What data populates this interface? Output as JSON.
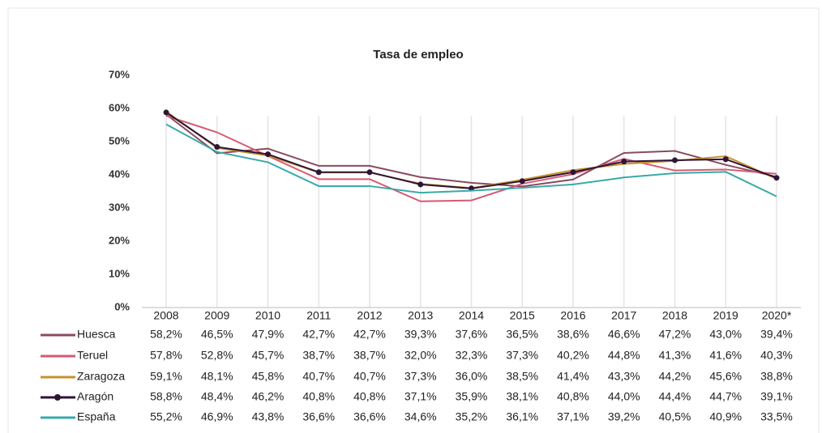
{
  "chart_data": {
    "type": "line",
    "title": "Tasa de empleo",
    "categories": [
      "2008",
      "2009",
      "2010",
      "2011",
      "2012",
      "2013",
      "2014",
      "2015",
      "2016",
      "2017",
      "2018",
      "2019",
      "2020*"
    ],
    "ylim": [
      0,
      70
    ],
    "yticks": [
      {
        "value": 0,
        "label": "0%"
      },
      {
        "value": 10,
        "label": "10%"
      },
      {
        "value": 20,
        "label": "20%"
      },
      {
        "value": 30,
        "label": "30%"
      },
      {
        "value": 40,
        "label": "40%"
      },
      {
        "value": 50,
        "label": "50%"
      },
      {
        "value": 60,
        "label": "60%"
      },
      {
        "value": 70,
        "label": "70%"
      }
    ],
    "grid": true,
    "series": [
      {
        "name": "Huesca",
        "color": "#8b4a5e",
        "values": [
          58.2,
          46.5,
          47.9,
          42.7,
          42.7,
          39.3,
          37.6,
          36.5,
          38.6,
          46.6,
          47.2,
          43.0,
          39.4
        ],
        "value_labels": [
          "58,2%",
          "46,5%",
          "47,9%",
          "42,7%",
          "42,7%",
          "39,3%",
          "37,6%",
          "36,5%",
          "38,6%",
          "46,6%",
          "47,2%",
          "43,0%",
          "39,4%"
        ]
      },
      {
        "name": "Teruel",
        "color": "#d45a72",
        "values": [
          57.8,
          52.8,
          45.7,
          38.7,
          38.7,
          32.0,
          32.3,
          37.3,
          40.2,
          44.8,
          41.3,
          41.6,
          40.3
        ],
        "value_labels": [
          "57,8%",
          "52,8%",
          "45,7%",
          "38,7%",
          "38,7%",
          "32,0%",
          "32,3%",
          "37,3%",
          "40,2%",
          "44,8%",
          "41,3%",
          "41,6%",
          "40,3%"
        ]
      },
      {
        "name": "Zaragoza",
        "color": "#c8912e",
        "values": [
          59.1,
          48.1,
          45.8,
          40.7,
          40.7,
          37.3,
          36.0,
          38.5,
          41.4,
          43.3,
          44.2,
          45.6,
          38.8
        ],
        "value_labels": [
          "59,1%",
          "48,1%",
          "45,8%",
          "40,7%",
          "40,7%",
          "37,3%",
          "36,0%",
          "38,5%",
          "41,4%",
          "43,3%",
          "44,2%",
          "45,6%",
          "38,8%"
        ]
      },
      {
        "name": "Aragón",
        "color": "#2e1535",
        "marker": "circle",
        "values": [
          58.8,
          48.4,
          46.2,
          40.8,
          40.8,
          37.1,
          35.9,
          38.1,
          40.8,
          44.0,
          44.4,
          44.7,
          39.1
        ],
        "value_labels": [
          "58,8%",
          "48,4%",
          "46,2%",
          "40,8%",
          "40,8%",
          "37,1%",
          "35,9%",
          "38,1%",
          "40,8%",
          "44,0%",
          "44,4%",
          "44,7%",
          "39,1%"
        ]
      },
      {
        "name": "España",
        "color": "#3aa9a9",
        "values": [
          55.2,
          46.9,
          43.8,
          36.6,
          36.6,
          34.6,
          35.2,
          36.1,
          37.1,
          39.2,
          40.5,
          40.9,
          33.5
        ],
        "value_labels": [
          "55,2%",
          "46,9%",
          "43,8%",
          "36,6%",
          "36,6%",
          "34,6%",
          "35,2%",
          "36,1%",
          "37,1%",
          "39,2%",
          "40,5%",
          "40,9%",
          "33,5%"
        ]
      }
    ]
  }
}
